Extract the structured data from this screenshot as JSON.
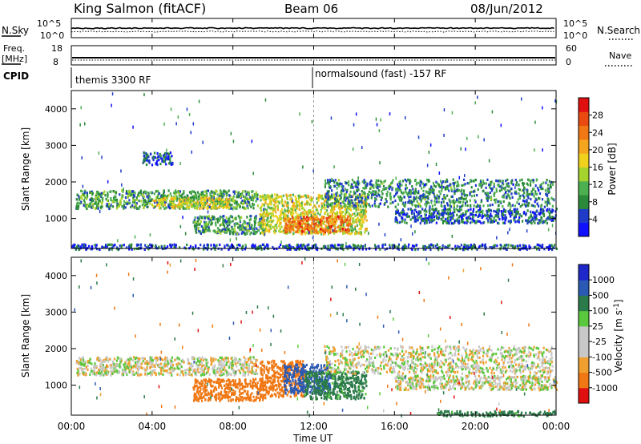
{
  "header": {
    "station": "King Salmon (fitACF)",
    "beam": "Beam 06",
    "date": "08/Jun/2012"
  },
  "strips": {
    "nsky": {
      "label": "N.Sky",
      "left_ticks": [
        "10^5",
        "10^0"
      ],
      "right_ticks": [
        "10^5",
        "10^0"
      ],
      "right_label": "N.Search",
      "right_legend_style": "dotted"
    },
    "freq": {
      "label": "Freq.",
      "unit": "[MHz]",
      "left_ticks": [
        "18",
        "8"
      ],
      "right_ticks": [
        "60",
        "0"
      ],
      "right_label": "Nave",
      "right_legend_style": "dotted"
    },
    "cpid": {
      "label": "CPID",
      "segments": [
        {
          "text": "themis 3300 RF",
          "start": "00:00"
        },
        {
          "text": "normalsound (fast) -157 RF",
          "start": "12:00"
        }
      ]
    }
  },
  "x_axis": {
    "label": "Time UT",
    "ticks": [
      "00:00",
      "04:00",
      "08:00",
      "12:00",
      "16:00",
      "20:00",
      "00:00"
    ]
  },
  "colors": {
    "power": [
      "#1010ff",
      "#1e3cc8",
      "#2b8a3a",
      "#4caf50",
      "#a6d32e",
      "#f0d21e",
      "#f5a51e",
      "#f07814",
      "#e84a10",
      "#e01010"
    ],
    "velocity": [
      "#e01010",
      "#f07814",
      "#f0a030",
      "#c8c8c8",
      "#c8c8c8",
      "#5ac83c",
      "#2b7a4a",
      "#2b5ab4",
      "#1e28c8"
    ]
  },
  "chart_data": [
    {
      "type": "line",
      "name": "N.Sky / N.Search",
      "x_unit": "hours UT",
      "x": [
        0,
        1,
        2,
        3,
        4,
        5,
        6,
        7,
        8,
        9,
        10,
        11,
        12,
        13,
        14,
        15,
        16,
        17,
        18,
        19,
        20,
        21,
        22,
        23,
        24
      ],
      "series": [
        {
          "name": "N.Sky",
          "values": [
            300,
            300,
            320,
            310,
            300,
            330,
            300,
            310,
            320,
            300,
            310,
            300,
            320,
            310,
            300,
            320,
            310,
            300,
            320,
            310,
            300,
            310,
            320,
            300,
            300
          ]
        },
        {
          "name": "N.Search",
          "values": [
            40,
            42,
            40,
            41,
            40,
            42,
            40,
            41,
            40,
            42,
            40,
            41,
            40,
            42,
            40,
            41,
            40,
            42,
            40,
            41,
            40,
            42,
            40,
            41,
            40
          ]
        }
      ],
      "ylim": [
        1,
        100000
      ],
      "yscale": "log"
    },
    {
      "type": "line",
      "name": "Freq / Nave",
      "x_unit": "hours UT",
      "x": [
        0,
        24
      ],
      "series": [
        {
          "name": "Freq.",
          "values": [
            10.5,
            10.5
          ]
        },
        {
          "name": "Nave",
          "values": [
            14,
            14
          ]
        }
      ],
      "ylim": [
        8,
        18
      ],
      "y2lim": [
        0,
        60
      ]
    },
    {
      "type": "heatmap",
      "title": "Power",
      "xlabel": "Time UT",
      "ylabel": "Slant Range [km]",
      "xlim": [
        0,
        24
      ],
      "ylim": [
        180,
        4500
      ],
      "yticks": [
        1000,
        2000,
        3000,
        4000
      ],
      "colorbar_label": "Power [dB]",
      "colorbar_range": [
        0,
        32
      ],
      "colorbar_ticks": [
        4,
        8,
        12,
        16,
        20,
        24,
        28
      ],
      "regions": [
        {
          "t": [
            0.2,
            9.2
          ],
          "range": [
            1300,
            1800
          ],
          "power_db": 10
        },
        {
          "t": [
            4.0,
            7.8
          ],
          "range": [
            1300,
            1600
          ],
          "power_db": 17
        },
        {
          "t": [
            6.0,
            9.5
          ],
          "range": [
            600,
            1100
          ],
          "power_db": 9
        },
        {
          "t": [
            9.3,
            14.6
          ],
          "range": [
            600,
            1700
          ],
          "power_db": 16
        },
        {
          "t": [
            10.5,
            13.8
          ],
          "range": [
            650,
            1100
          ],
          "power_db": 25
        },
        {
          "t": [
            12.5,
            23.8
          ],
          "range": [
            1350,
            2100
          ],
          "power_db": 8
        },
        {
          "t": [
            16.0,
            24.0
          ],
          "range": [
            900,
            1300
          ],
          "power_db": 6
        },
        {
          "t": [
            3.5,
            5.0
          ],
          "range": [
            2500,
            2850
          ],
          "power_db": 5
        },
        {
          "t": [
            0.0,
            24.0
          ],
          "range": [
            180,
            320
          ],
          "power_db": 5
        }
      ]
    },
    {
      "type": "heatmap",
      "title": "Velocity",
      "xlabel": "Time UT",
      "ylabel": "Slant Range [km]",
      "xlim": [
        0,
        24
      ],
      "ylim": [
        180,
        4500
      ],
      "yticks": [
        1000,
        2000,
        3000,
        4000
      ],
      "colorbar_label": "Velocity [m s^-1]",
      "colorbar_ticks": [
        "1000",
        "500",
        "100",
        "25",
        "-25",
        "-100",
        "-500",
        "-1000"
      ],
      "regions": [
        {
          "t": [
            0.2,
            9.2
          ],
          "range": [
            1300,
            1800
          ],
          "velocity": 0
        },
        {
          "t": [
            6.0,
            9.6
          ],
          "range": [
            600,
            1200
          ],
          "velocity": -400
        },
        {
          "t": [
            9.3,
            11.5
          ],
          "range": [
            700,
            1700
          ],
          "velocity": -300
        },
        {
          "t": [
            10.5,
            12.8
          ],
          "range": [
            800,
            1600
          ],
          "velocity": 600
        },
        {
          "t": [
            11.5,
            14.6
          ],
          "range": [
            650,
            1400
          ],
          "velocity": 150
        },
        {
          "t": [
            12.5,
            23.8
          ],
          "range": [
            1350,
            2100
          ],
          "velocity": 0
        },
        {
          "t": [
            16.0,
            24.0
          ],
          "range": [
            900,
            1300
          ],
          "velocity": 0
        },
        {
          "t": [
            18.0,
            24.0
          ],
          "range": [
            180,
            320
          ],
          "velocity": 150
        }
      ]
    }
  ]
}
